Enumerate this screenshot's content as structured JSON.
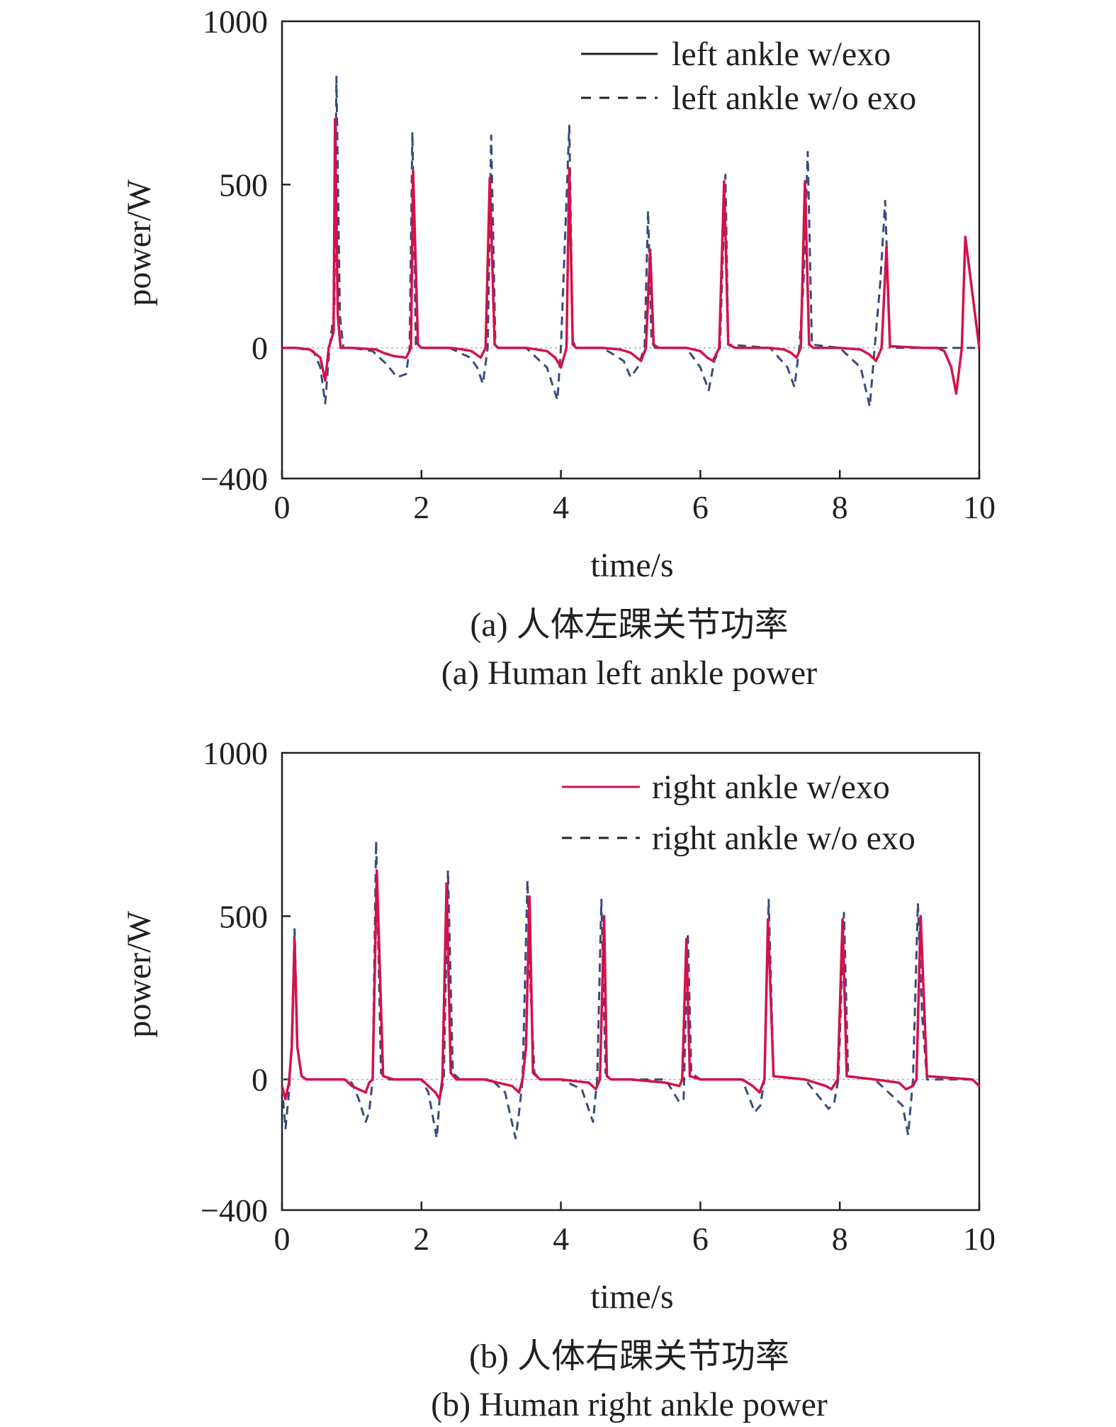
{
  "chart_data": [
    {
      "type": "line",
      "caption_cn": "(a) 人体左踝关节功率",
      "caption_en": "(a) Human left ankle power",
      "xlabel": "time/s",
      "ylabel": "power/W",
      "xlim": [
        0,
        10
      ],
      "ylim": [
        -400,
        1000
      ],
      "xticks": [
        "0",
        "2",
        "4",
        "6",
        "8",
        "10"
      ],
      "yticks": [
        "1000",
        "500",
        "0",
        "−400"
      ],
      "legend_position": "top-right",
      "grid": false,
      "series": [
        {
          "name": "left ankle w/exo",
          "style": "solid",
          "color": "#d4114a",
          "legend_color": "#231f20",
          "x": [
            0,
            0.2,
            0.4,
            0.55,
            0.62,
            0.67,
            0.74,
            0.76,
            0.8,
            0.84,
            1.0,
            1.35,
            1.45,
            1.6,
            1.78,
            1.85,
            1.88,
            1.95,
            2.0,
            2.4,
            2.6,
            2.72,
            2.85,
            2.92,
            2.98,
            3.05,
            3.1,
            3.5,
            3.8,
            3.92,
            4.0,
            4.08,
            4.12,
            4.17,
            4.22,
            4.6,
            4.85,
            5.0,
            5.15,
            5.22,
            5.28,
            5.33,
            5.4,
            5.8,
            6.0,
            6.1,
            6.18,
            6.27,
            6.34,
            6.4,
            6.5,
            7.0,
            7.2,
            7.3,
            7.38,
            7.44,
            7.5,
            7.56,
            7.62,
            8.0,
            8.3,
            8.42,
            8.52,
            8.6,
            8.67,
            8.72,
            9.2,
            9.4,
            9.5,
            9.6,
            9.67,
            9.75,
            9.8,
            10.0
          ],
          "y": [
            0,
            0,
            -5,
            -30,
            -100,
            0,
            50,
            700,
            100,
            0,
            0,
            -5,
            -15,
            -25,
            -30,
            0,
            540,
            10,
            0,
            0,
            -5,
            -10,
            -30,
            0,
            520,
            10,
            0,
            0,
            -10,
            -30,
            -60,
            0,
            550,
            10,
            0,
            0,
            -5,
            -15,
            -40,
            0,
            300,
            10,
            0,
            0,
            -10,
            -30,
            -40,
            0,
            510,
            10,
            0,
            0,
            -5,
            -15,
            -30,
            0,
            510,
            10,
            0,
            0,
            -5,
            -20,
            -40,
            0,
            310,
            5,
            0,
            0,
            -10,
            -60,
            -140,
            0,
            340,
            0
          ]
        },
        {
          "name": "left ankle w/o exo",
          "style": "dashed",
          "color": "#3b4a7a",
          "legend_color": "#231f20",
          "x": [
            0,
            0.2,
            0.45,
            0.55,
            0.62,
            0.68,
            0.75,
            0.78,
            0.83,
            0.88,
            1.0,
            1.3,
            1.5,
            1.65,
            1.78,
            1.83,
            1.87,
            1.92,
            2.0,
            2.4,
            2.7,
            2.8,
            2.88,
            2.95,
            3.0,
            3.06,
            3.1,
            3.5,
            3.8,
            3.95,
            4.0,
            4.06,
            4.12,
            4.17,
            4.22,
            4.6,
            4.9,
            5.0,
            5.1,
            5.2,
            5.25,
            5.3,
            5.35,
            5.8,
            6.0,
            6.12,
            6.2,
            6.28,
            6.36,
            6.4,
            7.0,
            7.25,
            7.35,
            7.42,
            7.48,
            7.54,
            7.6,
            8.0,
            8.3,
            8.43,
            8.5,
            8.58,
            8.65,
            8.72,
            9.0,
            9.5,
            9.7,
            10.0
          ],
          "y": [
            0,
            0,
            -10,
            -60,
            -170,
            0,
            120,
            830,
            100,
            0,
            0,
            -10,
            -50,
            -90,
            -80,
            0,
            660,
            10,
            0,
            0,
            -30,
            -60,
            -110,
            0,
            650,
            10,
            0,
            0,
            -60,
            -160,
            0,
            340,
            680,
            20,
            0,
            0,
            -40,
            -90,
            -60,
            0,
            420,
            20,
            0,
            0,
            -60,
            -130,
            -40,
            0,
            530,
            10,
            0,
            -60,
            -120,
            0,
            200,
            600,
            10,
            0,
            -60,
            -180,
            0,
            200,
            450,
            0,
            0,
            0,
            0,
            0
          ]
        }
      ]
    },
    {
      "type": "line",
      "caption_cn": "(b) 人体右踝关节功率",
      "caption_en": "(b) Human right ankle power",
      "xlabel": "time/s",
      "ylabel": "power/W",
      "xlim": [
        0,
        10
      ],
      "ylim": [
        -400,
        1000
      ],
      "xticks": [
        "0",
        "2",
        "4",
        "6",
        "8",
        "10"
      ],
      "yticks": [
        "1000",
        "500",
        "0",
        "−400"
      ],
      "legend_position": "top-right",
      "grid": false,
      "series": [
        {
          "name": "right ankle w/exo",
          "style": "solid",
          "color": "#d4114a",
          "legend_color": "#d4114a",
          "x": [
            0,
            0.05,
            0.1,
            0.14,
            0.18,
            0.22,
            0.28,
            0.35,
            0.6,
            0.9,
            1.0,
            1.1,
            1.2,
            1.25,
            1.3,
            1.36,
            1.45,
            1.6,
            2.0,
            2.1,
            2.2,
            2.26,
            2.3,
            2.36,
            2.42,
            2.5,
            2.6,
            2.9,
            3.1,
            3.3,
            3.4,
            3.45,
            3.5,
            3.55,
            3.6,
            3.7,
            4.0,
            4.4,
            4.5,
            4.56,
            4.62,
            4.66,
            4.72,
            5.0,
            5.5,
            5.7,
            5.74,
            5.8,
            5.85,
            6.0,
            6.6,
            6.75,
            6.85,
            6.92,
            6.97,
            7.05,
            7.5,
            7.8,
            7.88,
            7.97,
            8.04,
            8.1,
            8.5,
            8.85,
            8.95,
            9.05,
            9.1,
            9.16,
            9.25,
            9.9,
            10.0
          ],
          "y": [
            -20,
            -60,
            -10,
            100,
            430,
            100,
            10,
            0,
            0,
            0,
            -20,
            -30,
            -40,
            -10,
            0,
            640,
            10,
            0,
            0,
            -20,
            -40,
            -60,
            0,
            600,
            20,
            0,
            0,
            0,
            -10,
            -20,
            -40,
            0,
            100,
            560,
            20,
            0,
            0,
            -10,
            -30,
            0,
            500,
            10,
            0,
            0,
            -10,
            -20,
            0,
            430,
            10,
            0,
            0,
            -20,
            -40,
            0,
            490,
            10,
            0,
            -20,
            -30,
            0,
            490,
            10,
            0,
            -10,
            -30,
            -20,
            0,
            500,
            10,
            0,
            -20
          ]
        },
        {
          "name": "right ankle w/o exo",
          "style": "dashed",
          "color": "#3b4a7a",
          "legend_color": "#231f20",
          "x": [
            0,
            0.05,
            0.1,
            0.14,
            0.18,
            0.22,
            0.28,
            0.35,
            0.6,
            0.9,
            1.0,
            1.1,
            1.2,
            1.25,
            1.3,
            1.35,
            1.42,
            1.5,
            2.0,
            2.1,
            2.22,
            2.26,
            2.32,
            2.38,
            2.45,
            2.55,
            3.0,
            3.2,
            3.35,
            3.4,
            3.45,
            3.52,
            3.56,
            3.62,
            3.7,
            4.0,
            4.3,
            4.46,
            4.52,
            4.58,
            4.64,
            4.7,
            5.0,
            5.5,
            5.7,
            5.76,
            5.82,
            5.87,
            6.0,
            6.6,
            6.78,
            6.86,
            6.92,
            6.98,
            7.05,
            7.5,
            7.84,
            7.92,
            7.98,
            8.06,
            8.12,
            8.5,
            8.9,
            8.98,
            9.05,
            9.12,
            9.18,
            9.25,
            9.9,
            10.0
          ],
          "y": [
            -20,
            -150,
            -40,
            120,
            460,
            100,
            10,
            0,
            0,
            0,
            -10,
            -60,
            -130,
            -100,
            0,
            730,
            20,
            0,
            0,
            -40,
            -180,
            -60,
            0,
            640,
            20,
            0,
            0,
            -40,
            -180,
            -100,
            0,
            610,
            300,
            20,
            0,
            0,
            -30,
            -130,
            0,
            550,
            20,
            0,
            0,
            0,
            -70,
            -60,
            450,
            20,
            0,
            0,
            -100,
            -80,
            0,
            550,
            10,
            0,
            -90,
            -70,
            0,
            510,
            10,
            0,
            -80,
            -170,
            0,
            540,
            200,
            0,
            0,
            -20
          ]
        }
      ]
    }
  ]
}
